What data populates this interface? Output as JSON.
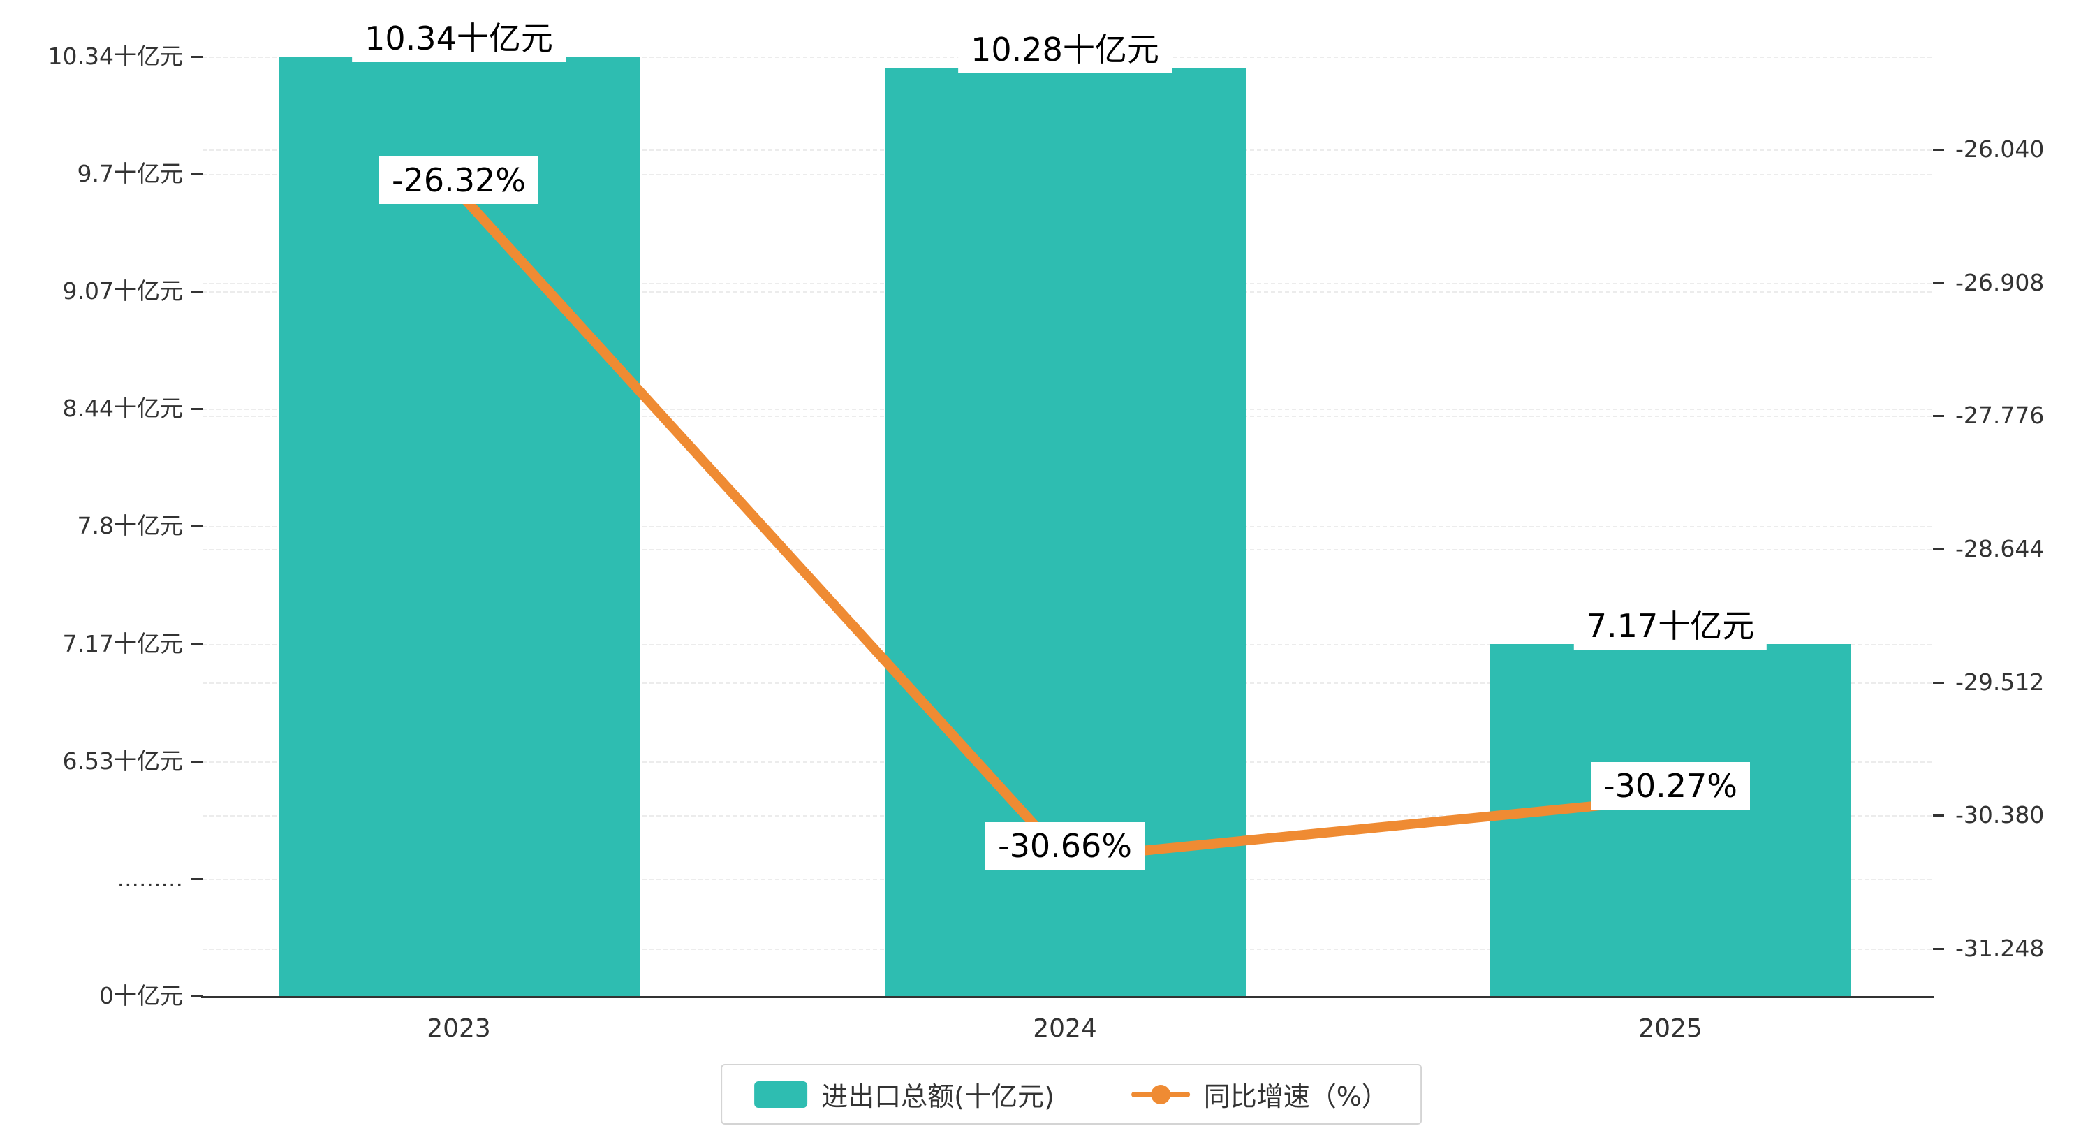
{
  "chart_data": {
    "type": "bar",
    "subtype": "bar-line-combo",
    "categories": [
      "2023",
      "2024",
      "2025"
    ],
    "series": [
      {
        "name": "进出口总额(十亿元)",
        "type": "bar",
        "axis": "left",
        "color": "#2EBDB1",
        "values": [
          10.34,
          10.28,
          7.17
        ],
        "labels": [
          "10.34十亿元",
          "10.28十亿元",
          "7.17十亿元"
        ]
      },
      {
        "name": "同比增速（%）",
        "type": "line",
        "axis": "right",
        "color": "#EF8B33",
        "values": [
          -26.32,
          -30.66,
          -30.27
        ],
        "labels": [
          "-26.32%",
          "-30.66%",
          "-30.27%"
        ]
      }
    ],
    "left_axis": {
      "unit": "十亿元",
      "ticks": [
        {
          "label": "10.34十亿元",
          "value": 10.34
        },
        {
          "label": "9.7十亿元",
          "value": 9.7
        },
        {
          "label": "9.07十亿元",
          "value": 9.07
        },
        {
          "label": "8.44十亿元",
          "value": 8.44
        },
        {
          "label": "7.8十亿元",
          "value": 7.8
        },
        {
          "label": "7.17十亿元",
          "value": 7.17
        },
        {
          "label": "6.53十亿元",
          "value": 6.53
        },
        {
          "label": ".........",
          "value": null
        },
        {
          "label": "0十亿元",
          "value": 0
        }
      ],
      "axis_break": true
    },
    "right_axis": {
      "unit": "%",
      "ticks": [
        {
          "label": "-26.040",
          "value": -26.04
        },
        {
          "label": "-26.908",
          "value": -26.908
        },
        {
          "label": "-27.776",
          "value": -27.776
        },
        {
          "label": "-28.644",
          "value": -28.644
        },
        {
          "label": "-29.512",
          "value": -29.512
        },
        {
          "label": "-30.380",
          "value": -30.38
        },
        {
          "label": "-31.248",
          "value": -31.248
        }
      ]
    },
    "legend": {
      "position": "bottom",
      "items": [
        {
          "label": "进出口总额(十亿元)",
          "marker": "bar",
          "color": "#2EBDB1"
        },
        {
          "label": "同比增速（%）",
          "marker": "line-dot",
          "color": "#EF8B33"
        }
      ]
    },
    "grid": true,
    "background": "#ffffff"
  }
}
